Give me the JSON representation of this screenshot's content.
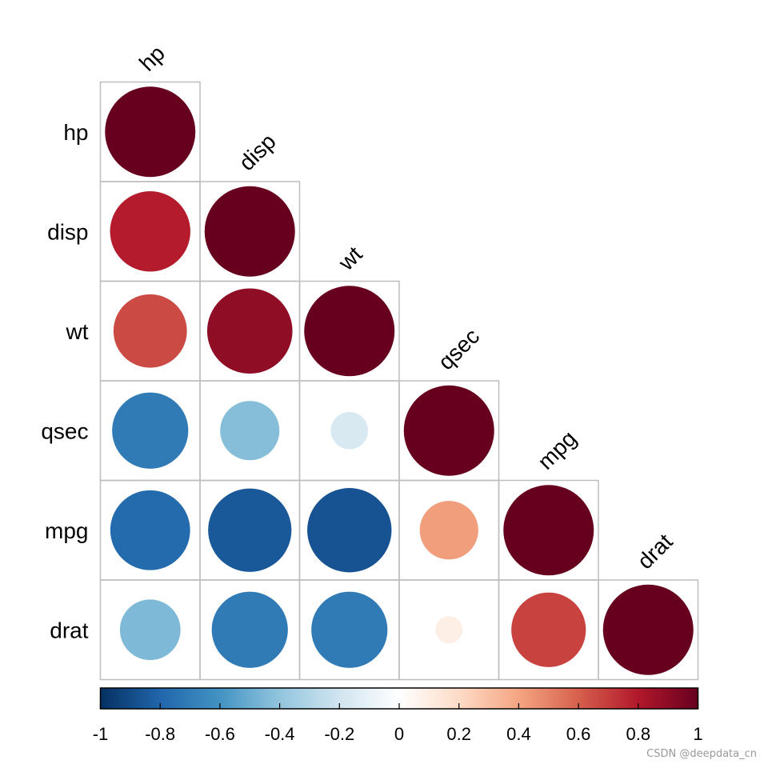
{
  "chart_data": {
    "type": "heatmap",
    "style": "correlation circles, lower triangle",
    "variables": [
      "hp",
      "disp",
      "wt",
      "qsec",
      "mpg",
      "drat"
    ],
    "matrix": [
      [
        1.0,
        0.79,
        0.66,
        -0.71,
        -0.78,
        -0.45
      ],
      [
        0.79,
        1.0,
        0.89,
        -0.43,
        -0.85,
        -0.71
      ],
      [
        0.66,
        0.89,
        1.0,
        -0.17,
        -0.87,
        -0.71
      ],
      [
        -0.71,
        -0.43,
        -0.17,
        1.0,
        0.42,
        0.09
      ],
      [
        -0.78,
        -0.85,
        -0.87,
        0.42,
        1.0,
        0.68
      ],
      [
        -0.45,
        -0.71,
        -0.71,
        0.09,
        0.68,
        1.0
      ]
    ],
    "colorbar": {
      "min": -1,
      "max": 1,
      "tick_labels": [
        "-1",
        "-0.8",
        "-0.6",
        "-0.4",
        "-0.2",
        "0",
        "0.2",
        "0.4",
        "0.6",
        "0.8",
        "1"
      ],
      "colors": [
        "#053061",
        "#2166ac",
        "#4393c3",
        "#92c5de",
        "#d1e5f0",
        "#ffffff",
        "#fddbc7",
        "#f4a582",
        "#d6604d",
        "#b2182b",
        "#67001f"
      ]
    },
    "grid_color": "#bebebe"
  },
  "watermark": "CSDN @deepdata_cn"
}
